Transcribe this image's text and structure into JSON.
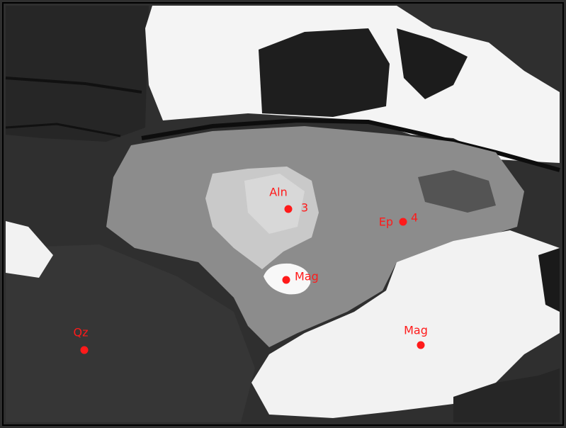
{
  "image": {
    "points": [
      {
        "label": "Aln",
        "number": 3
      },
      {
        "label": "Ep",
        "number": 4
      },
      {
        "label": "Mag"
      },
      {
        "label": "Mag"
      },
      {
        "label": "Qz"
      }
    ]
  }
}
